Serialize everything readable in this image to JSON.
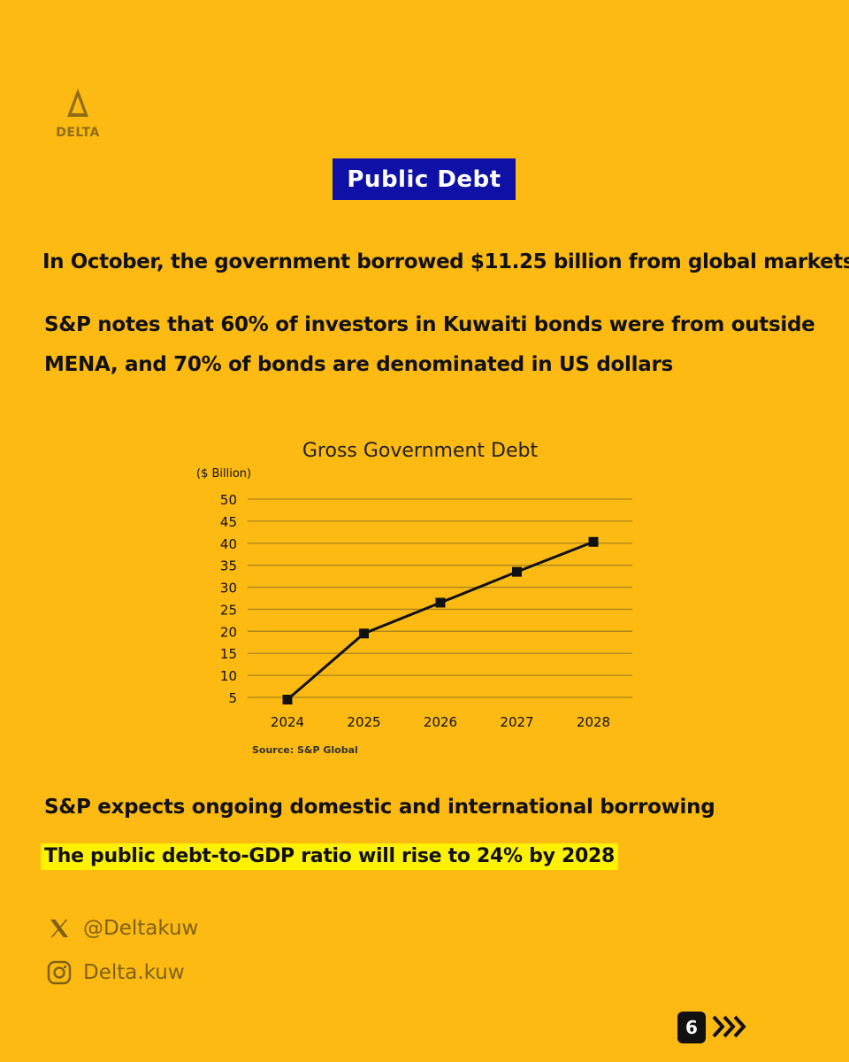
{
  "brand": {
    "logo_text": "DELTA"
  },
  "title": "Public Debt",
  "lines": {
    "l1": "In October, the government borrowed $11.25 billion from global markets",
    "l2": "S&P notes that 60% of investors in Kuwaiti bonds were from outside",
    "l3": "MENA, and 70% of bonds are denominated in US dollars",
    "l4": "S&P expects ongoing domestic and international borrowing",
    "l5": "The public debt-to-GDP ratio will rise to 24% by 2028"
  },
  "chart_data": {
    "type": "line",
    "title": "Gross Government Debt",
    "ylabel": "($ Billion)",
    "xlabel": "",
    "categories": [
      "2024",
      "2025",
      "2026",
      "2027",
      "2028"
    ],
    "series": [
      {
        "values": [
          4.5,
          19.5,
          26.5,
          33.5,
          40.3
        ]
      }
    ],
    "y_ticks": [
      5,
      10,
      15,
      20,
      25,
      30,
      35,
      40,
      45,
      50
    ],
    "ylim": [
      5,
      50
    ],
    "grid": true,
    "source": "Source: S&P Global",
    "line_color": "#111111",
    "grid_color": "#A9861C"
  },
  "social": {
    "x_handle": "@Deltakuw",
    "instagram": "Delta.kuw"
  },
  "page_number": "6",
  "colors": {
    "background": "#FCBA12",
    "badge": "#0F10A6",
    "highlight": "#FFF200"
  }
}
